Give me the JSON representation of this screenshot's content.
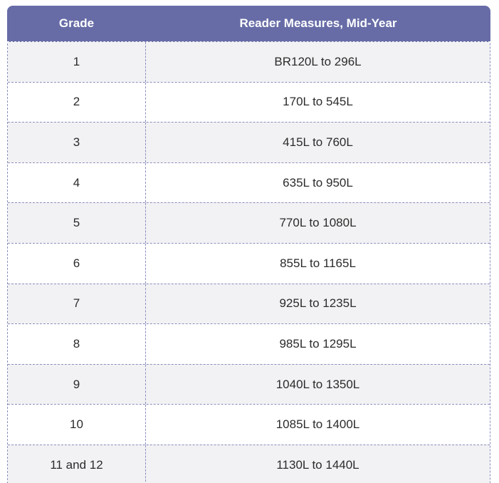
{
  "chart_data": {
    "type": "table",
    "title": "Grade / Reader Measures, Mid-Year",
    "columns": [
      "Grade",
      "Reader Measures, Mid-Year"
    ],
    "rows": [
      [
        "1",
        "BR120L to 296L"
      ],
      [
        "2",
        "170L to 545L"
      ],
      [
        "3",
        "415L to 760L"
      ],
      [
        "4",
        "635L to 950L"
      ],
      [
        "5",
        "770L to 1080L"
      ],
      [
        "6",
        "855L to 1165L"
      ],
      [
        "7",
        "925L to 1235L"
      ],
      [
        "8",
        "985L to 1295L"
      ],
      [
        "9",
        "1040L to 1350L"
      ],
      [
        "10",
        "1085L to 1400L"
      ],
      [
        "11 and 12",
        "1130L to 1440L"
      ]
    ]
  },
  "colors": {
    "header_background": "#676ca7",
    "header_text": "#ffffff",
    "dashed_border": "#8a8ebc",
    "header_bottom_dash": "#f3f3f7",
    "row_stripe": "#f2f2f4",
    "row_plain": "#ffffff",
    "cell_text": "#2b2b2b"
  }
}
